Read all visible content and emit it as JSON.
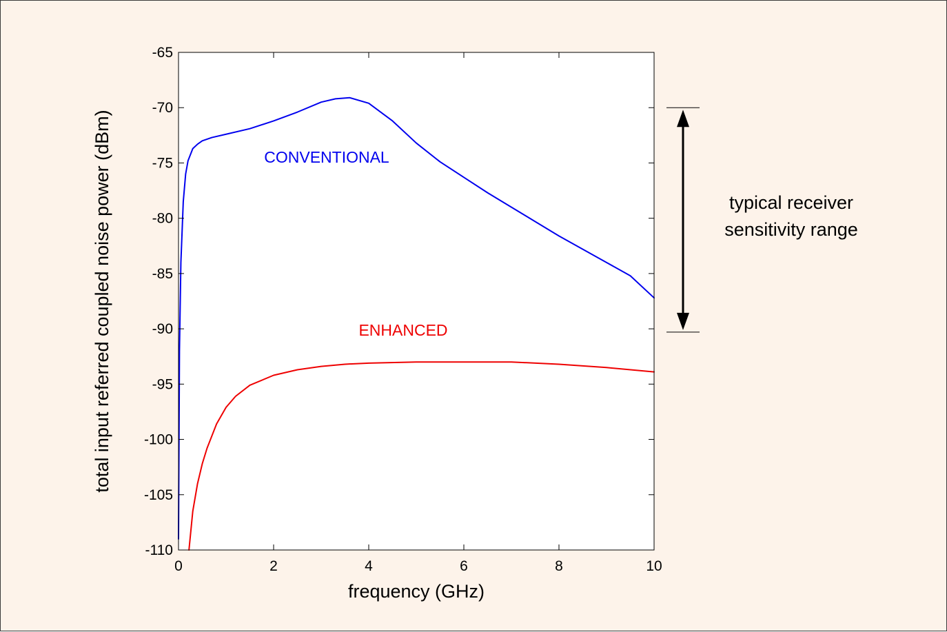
{
  "chart_data": {
    "type": "line",
    "title": "",
    "xlabel": "frequency (GHz)",
    "ylabel": "total input referred coupled noise power (dBm)",
    "xlim": [
      0,
      10
    ],
    "ylim": [
      -110,
      -65
    ],
    "xticks": [
      0,
      2,
      4,
      6,
      8,
      10
    ],
    "yticks": [
      -65,
      -70,
      -75,
      -80,
      -85,
      -90,
      -95,
      -100,
      -105,
      -110
    ],
    "grid": false,
    "series": [
      {
        "name": "CONVENTIONAL",
        "color": "#0000ee",
        "x": [
          0.0,
          0.02,
          0.05,
          0.1,
          0.15,
          0.2,
          0.3,
          0.4,
          0.5,
          0.7,
          1.0,
          1.5,
          2.0,
          2.5,
          3.0,
          3.3,
          3.6,
          4.0,
          4.5,
          5.0,
          5.5,
          6.0,
          6.5,
          7.0,
          7.5,
          8.0,
          8.5,
          9.0,
          9.5,
          10.0
        ],
        "y": [
          -109.0,
          -92.0,
          -84.0,
          -78.5,
          -76.0,
          -74.8,
          -73.7,
          -73.3,
          -73.0,
          -72.7,
          -72.4,
          -71.9,
          -71.2,
          -70.4,
          -69.5,
          -69.2,
          -69.1,
          -69.6,
          -71.2,
          -73.2,
          -74.9,
          -76.3,
          -77.7,
          -79.0,
          -80.3,
          -81.6,
          -82.8,
          -84.0,
          -85.2,
          -87.2
        ]
      },
      {
        "name": "ENHANCED",
        "color": "#ee0000",
        "x": [
          0.22,
          0.3,
          0.4,
          0.5,
          0.6,
          0.8,
          1.0,
          1.2,
          1.5,
          2.0,
          2.5,
          3.0,
          3.5,
          4.0,
          5.0,
          6.0,
          7.0,
          8.0,
          9.0,
          10.0
        ],
        "y": [
          -110.0,
          -106.5,
          -104.0,
          -102.2,
          -100.8,
          -98.6,
          -97.1,
          -96.1,
          -95.1,
          -94.2,
          -93.7,
          -93.4,
          -93.2,
          -93.1,
          -93.0,
          -93.0,
          -93.0,
          -93.2,
          -93.5,
          -93.9
        ]
      }
    ],
    "annotations": [
      {
        "text": "CONVENTIONAL",
        "color": "#0000ee"
      },
      {
        "text": "ENHANCED",
        "color": "#ee0000"
      },
      {
        "text": "typical receiver",
        "color": "#000000"
      },
      {
        "text": "sensitivity range",
        "color": "#000000"
      }
    ],
    "range_marker": {
      "top": -70,
      "bottom": -90.3
    }
  }
}
